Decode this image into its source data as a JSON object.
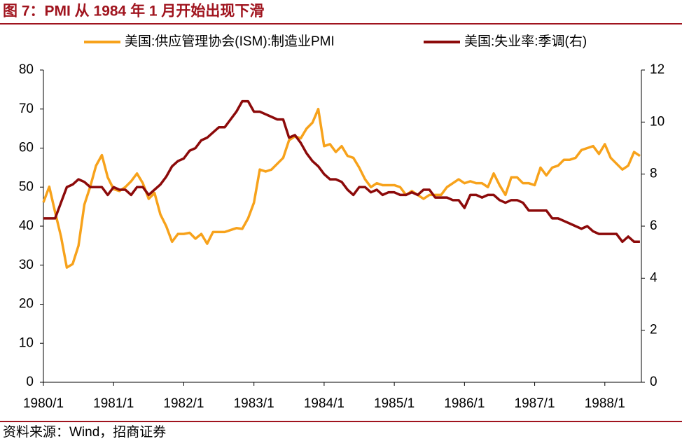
{
  "chart_data": {
    "type": "line",
    "title": "图 7：PMI 从 1984 年 1 月开始出现下滑",
    "source": "资料来源：Wind，招商证券",
    "categories": [
      "1980/1",
      null,
      null,
      null,
      null,
      null,
      null,
      null,
      null,
      null,
      null,
      null,
      "1981/1",
      null,
      null,
      null,
      null,
      null,
      null,
      null,
      null,
      null,
      null,
      null,
      "1982/1",
      null,
      null,
      null,
      null,
      null,
      null,
      null,
      null,
      null,
      null,
      null,
      "1983/1",
      null,
      null,
      null,
      null,
      null,
      null,
      null,
      null,
      null,
      null,
      null,
      "1984/1",
      null,
      null,
      null,
      null,
      null,
      null,
      null,
      null,
      null,
      null,
      null,
      "1985/1",
      null,
      null,
      null,
      null,
      null,
      null,
      null,
      null,
      null,
      null,
      null,
      "1986/1",
      null,
      null,
      null,
      null,
      null,
      null,
      null,
      null,
      null,
      null,
      null,
      "1987/1",
      null,
      null,
      null,
      null,
      null,
      null,
      null,
      null,
      null,
      null,
      null,
      "1988/1",
      null,
      null,
      null,
      null,
      null,
      null
    ],
    "series": [
      {
        "name": "美国:供应管理协会(ISM):制造业PMI",
        "color": "#f7a21b",
        "axis": "y",
        "values": [
          46.1,
          50.1,
          43.6,
          37.4,
          29.4,
          30.3,
          35.0,
          45.5,
          50.1,
          55.5,
          58.2,
          52.5,
          49.5,
          49,
          50,
          51.5,
          53.5,
          51,
          47,
          48.5,
          43,
          40,
          36,
          38,
          38,
          38.3,
          36.8,
          38,
          35.5,
          38.5,
          38.5,
          38.5,
          39,
          39.5,
          39.3,
          42,
          46,
          54.5,
          54,
          54.5,
          56,
          57.5,
          62,
          63,
          62.5,
          65,
          66.5,
          70,
          60.5,
          61,
          59,
          60.5,
          58,
          57.5,
          55,
          52,
          50,
          51,
          50.5,
          50.5,
          50.5,
          50,
          48,
          49,
          48,
          47,
          48,
          48,
          48,
          50,
          51,
          52,
          51,
          51.5,
          51,
          51,
          50,
          53.5,
          50.5,
          48,
          52.5,
          52.5,
          51,
          51,
          50.5,
          55,
          53,
          55,
          55.5,
          57,
          57,
          57.5,
          59.5,
          60,
          60.5,
          58.5,
          61,
          57.5,
          56,
          54.5,
          55.5,
          59,
          58
        ]
      },
      {
        "name": "美国:失业率:季调(右)",
        "color": "#8c0a0a",
        "axis": "y2",
        "values": [
          6.3,
          6.3,
          6.3,
          6.9,
          7.5,
          7.6,
          7.8,
          7.7,
          7.5,
          7.5,
          7.5,
          7.2,
          7.5,
          7.4,
          7.4,
          7.2,
          7.5,
          7.5,
          7.2,
          7.4,
          7.6,
          7.9,
          8.3,
          8.5,
          8.6,
          8.9,
          9.0,
          9.3,
          9.4,
          9.6,
          9.8,
          9.8,
          10.1,
          10.4,
          10.8,
          10.8,
          10.4,
          10.4,
          10.3,
          10.2,
          10.1,
          10.1,
          9.4,
          9.5,
          9.2,
          8.8,
          8.5,
          8.3,
          8.0,
          7.8,
          7.8,
          7.7,
          7.4,
          7.2,
          7.5,
          7.5,
          7.3,
          7.4,
          7.2,
          7.3,
          7.3,
          7.2,
          7.2,
          7.3,
          7.2,
          7.4,
          7.4,
          7.1,
          7.1,
          7.1,
          7.0,
          7.0,
          6.7,
          7.2,
          7.2,
          7.1,
          7.2,
          7.2,
          7.0,
          6.9,
          7.0,
          7.0,
          6.9,
          6.6,
          6.6,
          6.6,
          6.6,
          6.3,
          6.3,
          6.2,
          6.1,
          6.0,
          5.9,
          6.0,
          5.8,
          5.7,
          5.7,
          5.7,
          5.7,
          5.4,
          5.6,
          5.4,
          5.4
        ]
      }
    ],
    "ylim": [
      0,
      80
    ],
    "yticks": [
      0,
      10,
      20,
      30,
      40,
      50,
      60,
      70,
      80
    ],
    "y2lim": [
      0,
      12
    ],
    "y2ticks": [
      0,
      2,
      4,
      6,
      8,
      10,
      12
    ]
  }
}
